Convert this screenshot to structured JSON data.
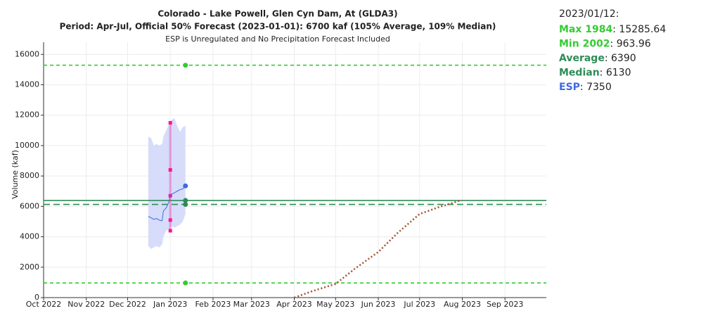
{
  "chart_data": {
    "type": "line",
    "title": "Colorado - Lake Powell, Glen Cyn Dam, At (GLDA3)",
    "subtitle": "Period: Apr-Jul, Official 50% Forecast (2023-01-01): 6700 kaf (105% Average, 109% Median)",
    "note": "ESP is Unregulated and No Precipitation Forecast Included",
    "y_label": "Volume (kaf)",
    "date_label": "2023/01/12:",
    "xlim": [
      "2022-10-01",
      "2023-10-01"
    ],
    "xticks": [
      {
        "value": "2022-10-01",
        "label": "Oct 2022"
      },
      {
        "value": "2022-11-01",
        "label": "Nov 2022"
      },
      {
        "value": "2022-12-01",
        "label": "Dec 2022"
      },
      {
        "value": "2023-01-01",
        "label": "Jan 2023"
      },
      {
        "value": "2023-02-01",
        "label": "Feb 2023"
      },
      {
        "value": "2023-03-01",
        "label": "Mar 2023"
      },
      {
        "value": "2023-04-01",
        "label": "Apr 2023"
      },
      {
        "value": "2023-05-01",
        "label": "May 2023"
      },
      {
        "value": "2023-06-01",
        "label": "Jun 2023"
      },
      {
        "value": "2023-07-01",
        "label": "Jul 2023"
      },
      {
        "value": "2023-08-01",
        "label": "Aug 2023"
      },
      {
        "value": "2023-09-01",
        "label": "Sep 2023"
      }
    ],
    "ylim": [
      0,
      16800
    ],
    "yticks": [
      0,
      2000,
      4000,
      6000,
      8000,
      10000,
      12000,
      14000,
      16000
    ],
    "grid": true,
    "reference_lines": [
      {
        "name": "Max 1984",
        "color": "#33cc33",
        "value": 15285.64,
        "dashed": true
      },
      {
        "name": "Min 2002",
        "color": "#33cc33",
        "value": 963.96,
        "dashed": true
      },
      {
        "name": "Average",
        "color": "#2e8b57",
        "value": 6390,
        "dashed": false
      },
      {
        "name": "Median",
        "color": "#2e8b57",
        "value": 6130,
        "dashed": true
      }
    ],
    "esp": {
      "name": "ESP",
      "color": "#4169e1",
      "band_color": "#d6dcfa",
      "x": [
        "2022-12-16",
        "2022-12-18",
        "2022-12-20",
        "2022-12-22",
        "2022-12-24",
        "2022-12-26",
        "2022-12-27",
        "2022-12-29",
        "2022-12-31",
        "2023-01-01",
        "2023-01-02",
        "2023-01-04",
        "2023-01-06",
        "2023-01-08",
        "2023-01-10",
        "2023-01-12"
      ],
      "values": [
        5350,
        5250,
        5150,
        5200,
        5100,
        5050,
        5700,
        5900,
        6300,
        6700,
        6800,
        6900,
        7000,
        7100,
        7150,
        7350
      ],
      "lower": [
        3400,
        3200,
        3300,
        3400,
        3300,
        3500,
        4000,
        4400,
        4500,
        4600,
        4700,
        4600,
        4700,
        4800,
        5000,
        5500
      ],
      "upper": [
        10600,
        10500,
        10000,
        10100,
        10000,
        10100,
        10600,
        11000,
        11400,
        11600,
        11700,
        11800,
        11300,
        10900,
        11200,
        11300
      ]
    },
    "forecast": {
      "x": "2023-01-01",
      "color": "#ff1493",
      "values": [
        4400,
        5100,
        6700,
        8400,
        11500
      ]
    },
    "observed": {
      "color": "#a0522d",
      "x": [
        "2023-04-01",
        "2023-04-15",
        "2023-05-01",
        "2023-05-15",
        "2023-06-01",
        "2023-06-15",
        "2023-07-01",
        "2023-07-15",
        "2023-07-31"
      ],
      "values": [
        0,
        450,
        900,
        1900,
        3000,
        4250,
        5500,
        5950,
        6400
      ]
    }
  }
}
